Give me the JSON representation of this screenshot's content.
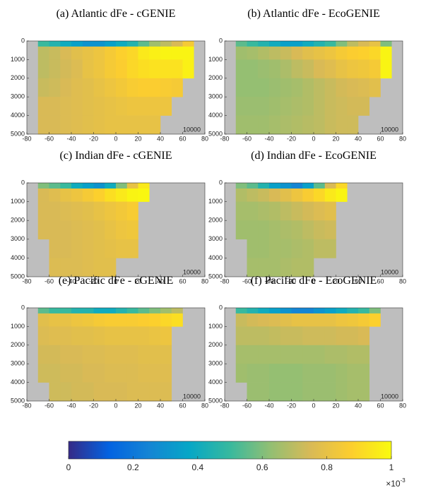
{
  "chart_data": [
    {
      "type": "heatmap",
      "title": "(a) Atlantic dFe - cGENIE",
      "annotation": "10000",
      "x_edges": [
        -80,
        -70,
        -60,
        -50,
        -40,
        -30,
        -20,
        -10,
        0,
        10,
        20,
        30,
        40,
        50,
        60,
        70,
        80
      ],
      "y_edges": [
        0,
        300,
        1000,
        2000,
        3000,
        4000,
        5000
      ],
      "xlim": [
        -80,
        80
      ],
      "ylim": [
        0,
        5000
      ],
      "y_inverted": true,
      "xticks": [
        -80,
        -60,
        -40,
        -20,
        0,
        20,
        40,
        60,
        80
      ],
      "yticks": [
        0,
        1000,
        2000,
        3000,
        4000,
        5000
      ],
      "values": [
        [
          null,
          0.5,
          0.45,
          0.4,
          0.35,
          0.3,
          0.3,
          0.35,
          0.4,
          0.45,
          0.55,
          0.65,
          0.7,
          0.75,
          0.85,
          null
        ],
        [
          null,
          0.7,
          0.72,
          0.75,
          0.78,
          0.8,
          0.82,
          0.85,
          0.88,
          0.9,
          0.95,
          0.97,
          0.98,
          0.98,
          0.98,
          null
        ],
        [
          null,
          0.7,
          0.72,
          0.74,
          0.76,
          0.8,
          0.82,
          0.85,
          0.87,
          0.9,
          0.92,
          0.93,
          0.93,
          0.93,
          0.97,
          null
        ],
        [
          null,
          0.72,
          0.73,
          0.75,
          0.77,
          0.78,
          0.8,
          0.82,
          0.84,
          0.86,
          0.87,
          0.87,
          0.86,
          0.85,
          null,
          null
        ],
        [
          null,
          0.75,
          0.75,
          0.76,
          0.77,
          0.78,
          0.79,
          0.8,
          0.81,
          0.82,
          0.82,
          0.82,
          0.82,
          null,
          null,
          null
        ],
        [
          null,
          0.75,
          0.75,
          0.76,
          0.77,
          0.78,
          0.79,
          0.8,
          0.8,
          0.8,
          0.8,
          0.8,
          null,
          null,
          null,
          null
        ]
      ]
    },
    {
      "type": "heatmap",
      "title": "(b) Atlantic dFe - EcoGENIE",
      "annotation": "10000",
      "x_edges": [
        -80,
        -70,
        -60,
        -50,
        -40,
        -30,
        -20,
        -10,
        0,
        10,
        20,
        30,
        40,
        50,
        60,
        70,
        80
      ],
      "y_edges": [
        0,
        300,
        1000,
        2000,
        3000,
        4000,
        5000
      ],
      "xlim": [
        -80,
        80
      ],
      "ylim": [
        0,
        5000
      ],
      "y_inverted": true,
      "xticks": [
        -80,
        -60,
        -40,
        -20,
        0,
        20,
        40,
        60,
        80
      ],
      "yticks": [
        0,
        1000,
        2000,
        3000,
        4000,
        5000
      ],
      "values": [
        [
          null,
          0.55,
          0.5,
          0.45,
          0.4,
          0.35,
          0.35,
          0.4,
          0.45,
          0.5,
          0.6,
          0.7,
          0.75,
          0.8,
          0.6,
          null
        ],
        [
          null,
          0.65,
          0.66,
          0.68,
          0.7,
          0.72,
          0.75,
          0.78,
          0.8,
          0.82,
          0.85,
          0.87,
          0.88,
          0.9,
          0.98,
          null
        ],
        [
          null,
          0.63,
          0.63,
          0.64,
          0.65,
          0.67,
          0.7,
          0.72,
          0.75,
          0.77,
          0.8,
          0.82,
          0.83,
          0.85,
          0.98,
          null
        ],
        [
          null,
          0.63,
          0.63,
          0.63,
          0.64,
          0.65,
          0.66,
          0.68,
          0.7,
          0.72,
          0.74,
          0.75,
          0.76,
          0.78,
          null,
          null
        ],
        [
          null,
          0.64,
          0.64,
          0.64,
          0.65,
          0.66,
          0.67,
          0.68,
          0.7,
          0.72,
          0.73,
          0.74,
          0.74,
          null,
          null,
          null
        ],
        [
          null,
          0.65,
          0.65,
          0.65,
          0.66,
          0.67,
          0.68,
          0.69,
          0.7,
          0.72,
          0.73,
          0.73,
          null,
          null,
          null,
          null
        ]
      ]
    },
    {
      "type": "heatmap",
      "title": "(c) Indian dFe - cGENIE",
      "annotation": "10000",
      "x_edges": [
        -80,
        -70,
        -60,
        -50,
        -40,
        -30,
        -20,
        -10,
        0,
        10,
        20,
        30,
        40,
        50,
        60,
        70,
        80
      ],
      "y_edges": [
        0,
        300,
        1000,
        2000,
        3000,
        4000,
        5000
      ],
      "xlim": [
        -80,
        80
      ],
      "ylim": [
        0,
        5000
      ],
      "y_inverted": true,
      "xticks": [
        -80,
        -60,
        -40,
        -20,
        0,
        20,
        40,
        60,
        80
      ],
      "yticks": [
        0,
        1000,
        2000,
        3000,
        4000,
        5000
      ],
      "values": [
        [
          null,
          0.6,
          0.55,
          0.5,
          0.4,
          0.35,
          0.3,
          0.4,
          0.6,
          0.8,
          0.95,
          null,
          null,
          null,
          null,
          null
        ],
        [
          null,
          0.75,
          0.77,
          0.8,
          0.82,
          0.85,
          0.88,
          0.92,
          0.95,
          0.98,
          0.99,
          null,
          null,
          null,
          null,
          null
        ],
        [
          null,
          0.75,
          0.75,
          0.76,
          0.77,
          0.78,
          0.8,
          0.82,
          0.84,
          0.86,
          null,
          null,
          null,
          null,
          null,
          null
        ],
        [
          null,
          0.75,
          0.75,
          0.75,
          0.76,
          0.77,
          0.78,
          0.8,
          0.82,
          0.83,
          null,
          null,
          null,
          null,
          null,
          null
        ],
        [
          null,
          null,
          0.75,
          0.75,
          0.76,
          0.77,
          0.78,
          0.79,
          0.8,
          0.8,
          null,
          null,
          null,
          null,
          null,
          null
        ],
        [
          null,
          null,
          0.76,
          0.76,
          0.76,
          0.77,
          0.78,
          0.78,
          null,
          null,
          null,
          null,
          null,
          null,
          null,
          null
        ]
      ]
    },
    {
      "type": "heatmap",
      "title": "(d) Indian dFe - EcoGENIE",
      "annotation": "10000",
      "x_edges": [
        -80,
        -70,
        -60,
        -50,
        -40,
        -30,
        -20,
        -10,
        0,
        10,
        20,
        30,
        40,
        50,
        60,
        70,
        80
      ],
      "y_edges": [
        0,
        300,
        1000,
        2000,
        3000,
        4000,
        5000
      ],
      "xlim": [
        -80,
        80
      ],
      "ylim": [
        0,
        5000
      ],
      "y_inverted": true,
      "xticks": [
        -80,
        -60,
        -40,
        -20,
        0,
        20,
        40,
        60,
        80
      ],
      "yticks": [
        0,
        1000,
        2000,
        3000,
        4000,
        5000
      ],
      "values": [
        [
          null,
          0.6,
          0.55,
          0.45,
          0.35,
          0.3,
          0.25,
          0.35,
          0.55,
          0.75,
          0.9,
          null,
          null,
          null,
          null,
          null
        ],
        [
          null,
          0.68,
          0.7,
          0.72,
          0.75,
          0.78,
          0.82,
          0.86,
          0.9,
          0.95,
          0.98,
          null,
          null,
          null,
          null,
          null
        ],
        [
          null,
          0.66,
          0.66,
          0.67,
          0.68,
          0.7,
          0.72,
          0.74,
          0.76,
          0.78,
          null,
          null,
          null,
          null,
          null,
          null
        ],
        [
          null,
          0.65,
          0.65,
          0.65,
          0.66,
          0.67,
          0.68,
          0.7,
          0.72,
          0.73,
          null,
          null,
          null,
          null,
          null,
          null
        ],
        [
          null,
          null,
          0.65,
          0.65,
          0.66,
          0.66,
          0.67,
          0.68,
          0.7,
          0.7,
          null,
          null,
          null,
          null,
          null,
          null
        ],
        [
          null,
          null,
          0.66,
          0.66,
          0.66,
          0.67,
          0.68,
          0.68,
          null,
          null,
          null,
          null,
          null,
          null,
          null,
          null
        ]
      ]
    },
    {
      "type": "heatmap",
      "title": "(e) Pacific dFe - cGENIE",
      "annotation": "10000",
      "x_edges": [
        -80,
        -70,
        -60,
        -50,
        -40,
        -30,
        -20,
        -10,
        0,
        10,
        20,
        30,
        40,
        50,
        60,
        70,
        80
      ],
      "y_edges": [
        0,
        300,
        1000,
        2000,
        3000,
        4000,
        5000
      ],
      "xlim": [
        -80,
        80
      ],
      "ylim": [
        0,
        5000
      ],
      "y_inverted": true,
      "xticks": [
        -80,
        -60,
        -40,
        -20,
        0,
        20,
        40,
        60,
        80
      ],
      "yticks": [
        0,
        1000,
        2000,
        3000,
        4000,
        5000
      ],
      "values": [
        [
          null,
          0.55,
          0.5,
          0.5,
          0.45,
          0.45,
          0.4,
          0.4,
          0.45,
          0.5,
          0.55,
          0.6,
          0.65,
          0.7,
          null,
          null
        ],
        [
          null,
          0.78,
          0.8,
          0.8,
          0.82,
          0.83,
          0.85,
          0.86,
          0.86,
          0.86,
          0.87,
          0.88,
          0.9,
          0.92,
          null,
          null
        ],
        [
          null,
          0.76,
          0.77,
          0.77,
          0.78,
          0.78,
          0.79,
          0.8,
          0.8,
          0.8,
          0.8,
          0.81,
          0.82,
          null,
          null,
          null
        ],
        [
          null,
          0.74,
          0.74,
          0.75,
          0.75,
          0.76,
          0.76,
          0.77,
          0.77,
          0.77,
          0.78,
          0.78,
          0.78,
          null,
          null,
          null
        ],
        [
          null,
          0.73,
          0.73,
          0.74,
          0.74,
          0.75,
          0.75,
          0.76,
          0.76,
          0.76,
          0.77,
          0.77,
          0.77,
          null,
          null,
          null
        ],
        [
          null,
          null,
          0.73,
          0.73,
          0.74,
          0.74,
          0.75,
          0.75,
          0.75,
          0.76,
          0.76,
          0.76,
          0.76,
          null,
          null,
          null
        ]
      ]
    },
    {
      "type": "heatmap",
      "title": "(f) Pacific dFe - EcoGENIE",
      "annotation": "10000",
      "x_edges": [
        -80,
        -70,
        -60,
        -50,
        -40,
        -30,
        -20,
        -10,
        0,
        10,
        20,
        30,
        40,
        50,
        60,
        70,
        80
      ],
      "y_edges": [
        0,
        300,
        1000,
        2000,
        3000,
        4000,
        5000
      ],
      "xlim": [
        -80,
        80
      ],
      "ylim": [
        0,
        5000
      ],
      "y_inverted": true,
      "xticks": [
        -80,
        -60,
        -40,
        -20,
        0,
        20,
        40,
        60,
        80
      ],
      "yticks": [
        0,
        1000,
        2000,
        3000,
        4000,
        5000
      ],
      "values": [
        [
          null,
          0.5,
          0.45,
          0.4,
          0.35,
          0.3,
          0.25,
          0.25,
          0.3,
          0.35,
          0.4,
          0.45,
          0.5,
          0.6,
          null,
          null
        ],
        [
          null,
          0.72,
          0.74,
          0.75,
          0.76,
          0.78,
          0.8,
          0.8,
          0.8,
          0.8,
          0.82,
          0.83,
          0.85,
          0.88,
          null,
          null
        ],
        [
          null,
          0.7,
          0.7,
          0.7,
          0.71,
          0.72,
          0.72,
          0.73,
          0.73,
          0.73,
          0.74,
          0.74,
          0.75,
          null,
          null,
          null
        ],
        [
          null,
          0.66,
          0.66,
          0.66,
          0.66,
          0.66,
          0.66,
          0.66,
          0.66,
          0.67,
          0.67,
          0.68,
          0.68,
          null,
          null,
          null
        ],
        [
          null,
          0.65,
          0.64,
          0.64,
          0.63,
          0.63,
          0.63,
          0.64,
          0.64,
          0.64,
          0.65,
          0.66,
          0.66,
          null,
          null,
          null
        ],
        [
          null,
          null,
          0.64,
          0.64,
          0.63,
          0.63,
          0.63,
          0.64,
          0.64,
          0.64,
          0.65,
          0.66,
          0.66,
          null,
          null,
          null
        ]
      ]
    }
  ],
  "colorbar": {
    "lim": [
      0,
      1
    ],
    "ticks": [
      0,
      0.2,
      0.4,
      0.6,
      0.8,
      1
    ],
    "multiplier_base": "×10",
    "multiplier_exponent": "-3",
    "land_color": "#bebebe",
    "colormap": [
      "#352a87",
      "#0363e1",
      "#1485d4",
      "#06a7c6",
      "#38b99e",
      "#92bf73",
      "#d9ba56",
      "#fcce2e",
      "#f9fb0e"
    ]
  }
}
